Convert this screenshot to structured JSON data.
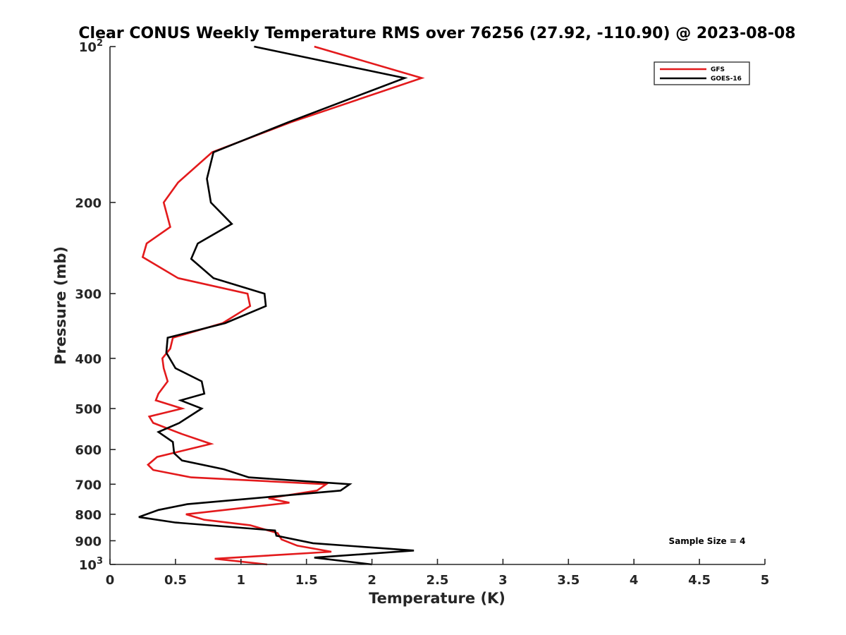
{
  "chart_data": {
    "type": "line",
    "title": "Clear CONUS Weekly Temperature RMS over 76256 (27.92, -110.90) @ 2023-08-08",
    "xlabel": "Temperature (K)",
    "ylabel": "Pressure (mb)",
    "xlim": [
      0,
      5
    ],
    "ylim": [
      100,
      1000
    ],
    "y_scale": "log",
    "y_reversed": true,
    "grid": false,
    "legend_position": "top-right",
    "x_ticks": [
      {
        "value": 0,
        "label": "0"
      },
      {
        "value": 0.5,
        "label": "0.5"
      },
      {
        "value": 1,
        "label": "1"
      },
      {
        "value": 1.5,
        "label": "1.5"
      },
      {
        "value": 2,
        "label": "2"
      },
      {
        "value": 2.5,
        "label": "2.5"
      },
      {
        "value": 3,
        "label": "3"
      },
      {
        "value": 3.5,
        "label": "3.5"
      },
      {
        "value": 4,
        "label": "4"
      },
      {
        "value": 4.5,
        "label": "4.5"
      },
      {
        "value": 5,
        "label": "5"
      }
    ],
    "y_ticks": [
      {
        "value": 100,
        "base": "10",
        "exp": "2"
      },
      {
        "value": 200,
        "label": "200"
      },
      {
        "value": 300,
        "label": "300"
      },
      {
        "value": 400,
        "label": "400"
      },
      {
        "value": 500,
        "label": "500"
      },
      {
        "value": 600,
        "label": "600"
      },
      {
        "value": 700,
        "label": "700"
      },
      {
        "value": 800,
        "label": "800"
      },
      {
        "value": 900,
        "label": "900"
      },
      {
        "value": 1000,
        "base": "10",
        "exp": "3"
      }
    ],
    "series": [
      {
        "name": "GFS",
        "color": "#e31a1c",
        "points": [
          {
            "x": 1.56,
            "y": 100
          },
          {
            "x": 2.38,
            "y": 115
          },
          {
            "x": 1.38,
            "y": 140
          },
          {
            "x": 0.78,
            "y": 160
          },
          {
            "x": 0.52,
            "y": 183
          },
          {
            "x": 0.41,
            "y": 200
          },
          {
            "x": 0.46,
            "y": 223
          },
          {
            "x": 0.28,
            "y": 240
          },
          {
            "x": 0.25,
            "y": 255
          },
          {
            "x": 0.52,
            "y": 280
          },
          {
            "x": 1.05,
            "y": 300
          },
          {
            "x": 1.07,
            "y": 317
          },
          {
            "x": 0.86,
            "y": 342
          },
          {
            "x": 0.48,
            "y": 365
          },
          {
            "x": 0.46,
            "y": 383
          },
          {
            "x": 0.4,
            "y": 400
          },
          {
            "x": 0.41,
            "y": 418
          },
          {
            "x": 0.44,
            "y": 443
          },
          {
            "x": 0.37,
            "y": 468
          },
          {
            "x": 0.35,
            "y": 482
          },
          {
            "x": 0.55,
            "y": 500
          },
          {
            "x": 0.3,
            "y": 518
          },
          {
            "x": 0.33,
            "y": 533
          },
          {
            "x": 0.55,
            "y": 560
          },
          {
            "x": 0.77,
            "y": 585
          },
          {
            "x": 0.36,
            "y": 620
          },
          {
            "x": 0.29,
            "y": 642
          },
          {
            "x": 0.33,
            "y": 657
          },
          {
            "x": 0.62,
            "y": 679
          },
          {
            "x": 1.65,
            "y": 700
          },
          {
            "x": 1.58,
            "y": 720
          },
          {
            "x": 1.21,
            "y": 745
          },
          {
            "x": 1.37,
            "y": 760
          },
          {
            "x": 0.58,
            "y": 800
          },
          {
            "x": 0.72,
            "y": 820
          },
          {
            "x": 1.07,
            "y": 840
          },
          {
            "x": 1.28,
            "y": 870
          },
          {
            "x": 1.31,
            "y": 895
          },
          {
            "x": 1.43,
            "y": 920
          },
          {
            "x": 1.69,
            "y": 945
          },
          {
            "x": 0.8,
            "y": 975
          },
          {
            "x": 1.2,
            "y": 1000
          }
        ]
      },
      {
        "name": "GOES-16",
        "color": "#000000",
        "points": [
          {
            "x": 1.1,
            "y": 100
          },
          {
            "x": 2.25,
            "y": 115
          },
          {
            "x": 1.36,
            "y": 140
          },
          {
            "x": 0.79,
            "y": 160
          },
          {
            "x": 0.74,
            "y": 180
          },
          {
            "x": 0.77,
            "y": 200
          },
          {
            "x": 0.93,
            "y": 220
          },
          {
            "x": 0.67,
            "y": 240
          },
          {
            "x": 0.62,
            "y": 257
          },
          {
            "x": 0.79,
            "y": 280
          },
          {
            "x": 1.18,
            "y": 300
          },
          {
            "x": 1.19,
            "y": 317
          },
          {
            "x": 0.88,
            "y": 342
          },
          {
            "x": 0.44,
            "y": 365
          },
          {
            "x": 0.43,
            "y": 390
          },
          {
            "x": 0.5,
            "y": 418
          },
          {
            "x": 0.7,
            "y": 443
          },
          {
            "x": 0.72,
            "y": 468
          },
          {
            "x": 0.54,
            "y": 482
          },
          {
            "x": 0.7,
            "y": 500
          },
          {
            "x": 0.53,
            "y": 533
          },
          {
            "x": 0.37,
            "y": 555
          },
          {
            "x": 0.48,
            "y": 580
          },
          {
            "x": 0.49,
            "y": 610
          },
          {
            "x": 0.55,
            "y": 630
          },
          {
            "x": 0.87,
            "y": 655
          },
          {
            "x": 1.06,
            "y": 679
          },
          {
            "x": 1.83,
            "y": 700
          },
          {
            "x": 1.76,
            "y": 720
          },
          {
            "x": 0.59,
            "y": 765
          },
          {
            "x": 0.37,
            "y": 785
          },
          {
            "x": 0.22,
            "y": 810
          },
          {
            "x": 0.5,
            "y": 830
          },
          {
            "x": 1.26,
            "y": 860
          },
          {
            "x": 1.27,
            "y": 880
          },
          {
            "x": 1.55,
            "y": 910
          },
          {
            "x": 2.32,
            "y": 940
          },
          {
            "x": 1.56,
            "y": 970
          },
          {
            "x": 2.0,
            "y": 1000
          }
        ]
      }
    ],
    "annotations": [
      {
        "text": "Sample Size = 4"
      }
    ]
  }
}
